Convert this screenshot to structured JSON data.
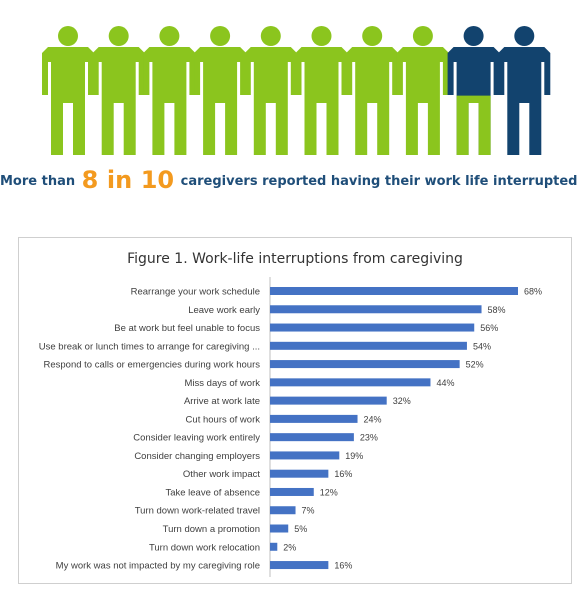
{
  "infographic": {
    "people_total": 10,
    "people_interrupted": 8,
    "fill_fraction_last_two": [
      0.55,
      0
    ],
    "colors": {
      "green": "#8bc51e",
      "navy": "#12436e",
      "orange": "#f39a1f"
    },
    "headline_pre": "More than",
    "headline_big_1": "8",
    "headline_big_mid": "in",
    "headline_big_2": "10",
    "headline_post": "caregivers reported having their work life interrupted"
  },
  "chart_data": {
    "type": "bar",
    "orientation": "horizontal",
    "title": "Figure 1. Work-life interruptions from caregiving",
    "categories": [
      "Rearrange your work schedule",
      "Leave work early",
      "Be at work but feel unable to focus",
      "Use break or lunch times to arrange for caregiving ...",
      "Respond to calls or emergencies during work hours",
      "Miss days of work",
      "Arrive at work late",
      "Cut hours of work",
      "Consider leaving work entirely",
      "Consider changing employers",
      "Other work impact",
      "Take leave of absence",
      "Turn down work-related travel",
      "Turn down a promotion",
      "Turn down work relocation",
      "My work was not impacted by my caregiving role"
    ],
    "values": [
      68,
      58,
      56,
      54,
      52,
      44,
      32,
      24,
      23,
      19,
      16,
      12,
      7,
      5,
      2,
      16
    ],
    "value_labels": [
      "68%",
      "58%",
      "56%",
      "54%",
      "52%",
      "44%",
      "32%",
      "24%",
      "23%",
      "19%",
      "16%",
      "12%",
      "7%",
      "5%",
      "2%",
      "16%"
    ],
    "xlim": [
      0,
      68
    ],
    "grid": false,
    "bar_color": "#4472c4"
  }
}
